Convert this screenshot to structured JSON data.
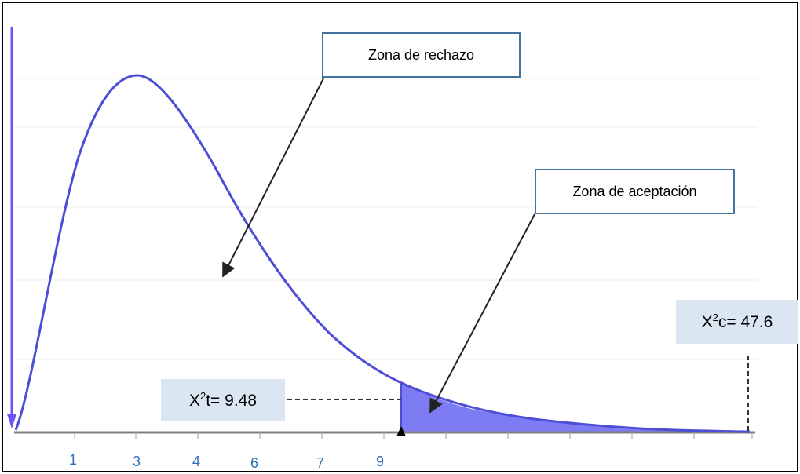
{
  "callouts": {
    "rechazo": "Zona de rechazo",
    "aceptacion": "Zona de aceptación"
  },
  "values": {
    "critical_base": "X",
    "critical_sup": "2",
    "critical_rest": "t= 9.48",
    "calculated_base": "X",
    "calculated_sup": "2",
    "calculated_rest": "c= 47.6"
  },
  "x_tick_labels": [
    "1",
    "3",
    "4",
    "6",
    "7",
    "9"
  ],
  "colors": {
    "curve": "#4d4dd6",
    "shade": "#7d7cf3",
    "axis": "#808080",
    "callout_border": "#41719c",
    "value_box": "#dbe6f3",
    "tick_label": "#2f6eb5",
    "arrow": "#222222",
    "y_arrow": "#6a55f5"
  }
}
